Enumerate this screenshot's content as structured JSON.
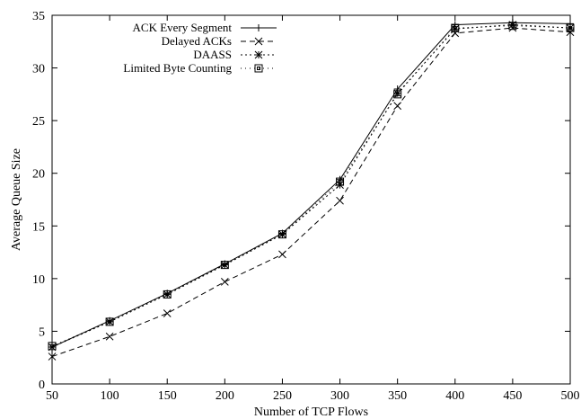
{
  "chart_data": {
    "type": "line",
    "title": "",
    "xlabel": "Number of TCP Flows",
    "ylabel": "Average Queue Size",
    "x": [
      50,
      100,
      150,
      200,
      250,
      300,
      350,
      400,
      450,
      500
    ],
    "xlim": [
      50,
      500
    ],
    "ylim": [
      0,
      35
    ],
    "xticks": [
      "50",
      "100",
      "150",
      "200",
      "250",
      "300",
      "350",
      "400",
      "450",
      "500"
    ],
    "yticks": [
      "0",
      "5",
      "10",
      "15",
      "20",
      "25",
      "30",
      "35"
    ],
    "grid": false,
    "legend_position": "top-left",
    "series": [
      {
        "name": "ACK Every Segment",
        "values": [
          3.5,
          6.0,
          8.6,
          11.4,
          14.3,
          19.4,
          28.0,
          34.1,
          34.3,
          34.2
        ],
        "dash": "solid",
        "marker": "plus",
        "color": "#000000"
      },
      {
        "name": "Delayed ACKs",
        "values": [
          2.6,
          4.5,
          6.7,
          9.7,
          12.3,
          17.4,
          26.4,
          33.3,
          33.8,
          33.4
        ],
        "dash": "dashed",
        "marker": "cross",
        "color": "#000000"
      },
      {
        "name": "DAASS",
        "values": [
          3.5,
          5.9,
          8.5,
          11.3,
          14.2,
          18.9,
          27.6,
          33.7,
          34.1,
          33.8
        ],
        "dash": "dotted",
        "marker": "star",
        "color": "#000000"
      },
      {
        "name": "Limited Byte Counting",
        "values": [
          3.6,
          5.9,
          8.5,
          11.3,
          14.2,
          19.2,
          27.5,
          33.8,
          34.0,
          33.8
        ],
        "dash": "sparse-dotted",
        "marker": "square",
        "color": "#000000"
      }
    ]
  }
}
